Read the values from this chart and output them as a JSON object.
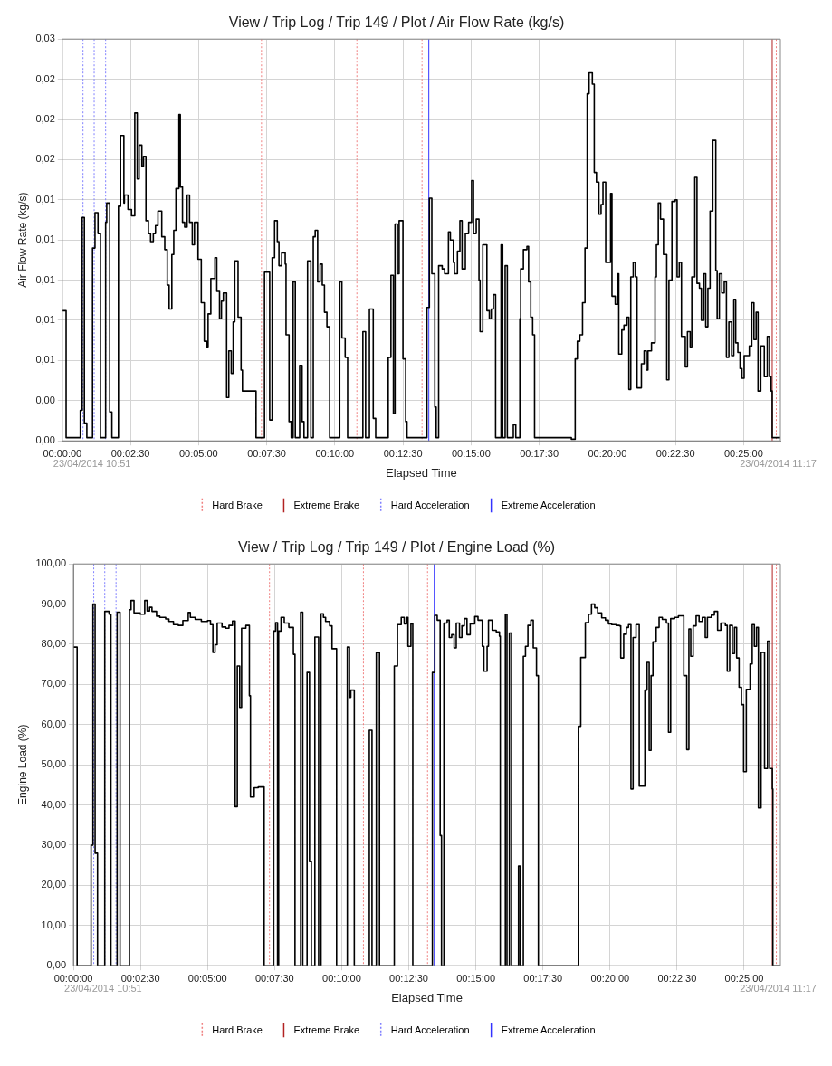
{
  "chart_data": [
    {
      "type": "step",
      "title": "View / Trip Log / Trip 149 / Plot / Air Flow Rate (kg/s)",
      "xlabel": "Elapsed Time",
      "ylabel": "Air Flow Rate (kg/s)",
      "annotations": [
        "23/04/2014 10:51",
        "23/04/2014 11:17"
      ],
      "xlim": [
        0,
        26.35
      ],
      "xticks": [
        {
          "value": 0,
          "label": "00:00:00"
        },
        {
          "value": 2.5,
          "label": "00:02:30"
        },
        {
          "value": 5,
          "label": "00:05:00"
        },
        {
          "value": 7.5,
          "label": "00:07:30"
        },
        {
          "value": 10,
          "label": "00:10:00"
        },
        {
          "value": 12.5,
          "label": "00:12:30"
        },
        {
          "value": 15,
          "label": "00:15:00"
        },
        {
          "value": 17.5,
          "label": "00:17:30"
        },
        {
          "value": 20,
          "label": "00:20:00"
        },
        {
          "value": 22.5,
          "label": "00:22:30"
        },
        {
          "value": 25,
          "label": "00:25:00"
        }
      ],
      "ylim": [
        0,
        0.025
      ],
      "yticks": [
        {
          "value": 0,
          "label": "0,00"
        },
        {
          "value": 0.0025,
          "label": "0,00"
        },
        {
          "value": 0.005,
          "label": "0,01"
        },
        {
          "value": 0.0075,
          "label": "0,01"
        },
        {
          "value": 0.01,
          "label": "0,01"
        },
        {
          "value": 0.0125,
          "label": "0,01"
        },
        {
          "value": 0.015,
          "label": "0,01"
        },
        {
          "value": 0.0175,
          "label": "0,02"
        },
        {
          "value": 0.02,
          "label": "0,02"
        },
        {
          "value": 0.0225,
          "label": "0,02"
        },
        {
          "value": 0.025,
          "label": "0,03"
        }
      ],
      "grid": true,
      "legend": "bottom",
      "marker": "none",
      "ref_lines": [
        {
          "axis": "x",
          "value": 7.31,
          "label": "Hard Brake",
          "color": "#f08080",
          "line_style": "dotted"
        },
        {
          "axis": "x",
          "value": 10.81,
          "color": "#f08080",
          "line_style": "dotted"
        },
        {
          "axis": "x",
          "value": 13.2,
          "color": "#f08080",
          "line_style": "dotted"
        },
        {
          "axis": "x",
          "value": 26.2,
          "color": "#f08080",
          "line_style": "dotted"
        },
        {
          "axis": "x",
          "value": 26.05,
          "label": "Extreme Brake",
          "color": "#b22222",
          "line_style": "solid"
        },
        {
          "axis": "x",
          "value": 0.76,
          "label": "Hard Acceleration",
          "color": "#8080ff",
          "line_style": "dotted"
        },
        {
          "axis": "x",
          "value": 1.17,
          "color": "#8080ff",
          "line_style": "dotted"
        },
        {
          "axis": "x",
          "value": 1.59,
          "color": "#8080ff",
          "line_style": "dotted"
        },
        {
          "axis": "x",
          "value": 13.45,
          "label": "Extreme Acceleration",
          "color": "#3333ff",
          "line_style": "solid"
        }
      ],
      "series": [
        {
          "color": "#000000",
          "line_style": "solid",
          "x": [
            0,
            0.14,
            0.66,
            0.73,
            0.81,
            0.9,
            1.11,
            1.2,
            1.31,
            1.4,
            1.59,
            1.63,
            1.74,
            1.82,
            2.06,
            2.14,
            2.26,
            2.28,
            2.41,
            2.54,
            2.66,
            2.75,
            2.82,
            2.92,
            2.98,
            3.07,
            3.16,
            3.24,
            3.34,
            3.42,
            3.51,
            3.65,
            3.76,
            3.85,
            3.92,
            4.02,
            4.09,
            4.17,
            4.28,
            4.33,
            4.41,
            4.49,
            4.58,
            4.67,
            4.77,
            4.85,
            4.98,
            5.1,
            5.21,
            5.3,
            5.35,
            5.45,
            5.6,
            5.67,
            5.77,
            5.84,
            5.91,
            6.03,
            6.11,
            6.2,
            6.27,
            6.33,
            6.45,
            6.56,
            6.61,
            7.11,
            7.42,
            7.61,
            7.7,
            7.79,
            7.89,
            7.95,
            8.05,
            8.18,
            8.21,
            8.32,
            8.4,
            8.47,
            8.55,
            8.71,
            8.8,
            8.87,
            9.0,
            9.12,
            9.21,
            9.28,
            9.37,
            9.46,
            9.54,
            9.62,
            9.71,
            9.81,
            10.18,
            10.26,
            10.38,
            10.47,
            11.03,
            11.13,
            11.27,
            11.41,
            11.5,
            11.96,
            12.06,
            12.15,
            12.21,
            12.3,
            12.36,
            12.5,
            12.6,
            12.65,
            13.38,
            13.47,
            13.56,
            13.67,
            13.72,
            13.81,
            13.94,
            14.03,
            14.17,
            14.24,
            14.35,
            14.39,
            14.5,
            14.59,
            14.67,
            14.79,
            14.91,
            15.02,
            15.09,
            15.19,
            15.29,
            15.33,
            15.43,
            15.58,
            15.67,
            15.74,
            15.82,
            15.9,
            16.1,
            16.16,
            16.25,
            16.33,
            16.55,
            16.64,
            16.79,
            16.82,
            16.92,
            17.05,
            17.11,
            17.19,
            17.26,
            17.33,
            18.68,
            18.82,
            18.9,
            18.99,
            19.09,
            19.18,
            19.26,
            19.33,
            19.45,
            19.52,
            19.6,
            19.69,
            19.77,
            19.84,
            19.94,
            20.12,
            20.17,
            20.29,
            20.38,
            20.42,
            20.53,
            20.61,
            20.72,
            20.79,
            20.86,
            20.95,
            21.03,
            21.09,
            21.25,
            21.35,
            21.43,
            21.49,
            21.62,
            21.75,
            21.8,
            21.87,
            21.95,
            22.06,
            22.18,
            22.26,
            22.37,
            22.49,
            22.56,
            22.64,
            22.72,
            22.86,
            22.94,
            23.04,
            23.1,
            23.21,
            23.29,
            23.38,
            23.45,
            23.54,
            23.61,
            23.69,
            23.77,
            23.87,
            23.98,
            24.03,
            24.11,
            24.2,
            24.29,
            24.37,
            24.46,
            24.56,
            24.64,
            24.71,
            24.79,
            24.87,
            24.94,
            25.02,
            25.21,
            25.3,
            25.38,
            25.46,
            25.53,
            25.63,
            25.76,
            25.87,
            25.95,
            26.01,
            26.05,
            26.35
          ],
          "values": [
            0.0081,
            0.0002,
            0.0019,
            0.0139,
            0.0011,
            0.0002,
            0.012,
            0.0142,
            0.0129,
            0.0002,
            0.0136,
            0.0148,
            0.0018,
            0.0002,
            0.0146,
            0.019,
            0.0148,
            0.0153,
            0.0144,
            0.014,
            0.0204,
            0.0163,
            0.0184,
            0.0171,
            0.0177,
            0.0137,
            0.0129,
            0.0124,
            0.0129,
            0.0134,
            0.0143,
            0.0127,
            0.0119,
            0.0097,
            0.0082,
            0.0116,
            0.0131,
            0.0157,
            0.0203,
            0.0158,
            0.0136,
            0.0133,
            0.0153,
            0.0136,
            0.0122,
            0.0136,
            0.0113,
            0.0086,
            0.0062,
            0.0058,
            0.0079,
            0.0101,
            0.0114,
            0.0093,
            0.0076,
            0.0087,
            0.0092,
            0.0027,
            0.0056,
            0.0042,
            0.0074,
            0.0112,
            0.0077,
            0.0044,
            0.0031,
            0.0002,
            0.0105,
            0.0013,
            0.0114,
            0.0137,
            0.0124,
            0.0109,
            0.0117,
            0.011,
            0.0066,
            0.0012,
            0.0002,
            0.0099,
            0.0002,
            0.0047,
            0.0012,
            0.0002,
            0.0112,
            0.0002,
            0.0127,
            0.0131,
            0.0099,
            0.011,
            0.0097,
            0.008,
            0.0071,
            0.0002,
            0.0099,
            0.0064,
            0.0052,
            0.0002,
            0.0068,
            0.0002,
            0.0082,
            0.0014,
            0.0002,
            0.0052,
            0.0103,
            0.0017,
            0.0135,
            0.0104,
            0.0137,
            0.0051,
            0.0012,
            0.0002,
            0.0083,
            0.0151,
            0.0104,
            0.0021,
            0.0002,
            0.0109,
            0.0107,
            0.0104,
            0.013,
            0.0125,
            0.0111,
            0.0104,
            0.0118,
            0.0137,
            0.0107,
            0.0129,
            0.0136,
            0.0162,
            0.0129,
            0.0138,
            0.01,
            0.0068,
            0.0122,
            0.0081,
            0.0076,
            0.0082,
            0.0091,
            0.0002,
            0.0122,
            0.0002,
            0.0109,
            0.0002,
            0.001,
            0.0002,
            0.0076,
            0.0107,
            0.0119,
            0.0121,
            0.0099,
            0.0077,
            0.0066,
            0.0002,
            0.0001,
            0.0051,
            0.0062,
            0.0066,
            0.0086,
            0.012,
            0.0216,
            0.0229,
            0.0222,
            0.0167,
            0.0161,
            0.0141,
            0.0147,
            0.0161,
            0.0111,
            0.0154,
            0.009,
            0.0085,
            0.0104,
            0.0054,
            0.0069,
            0.0072,
            0.0077,
            0.0032,
            0.0102,
            0.0111,
            0.0102,
            0.0033,
            0.0048,
            0.0056,
            0.0044,
            0.0056,
            0.0061,
            0.0102,
            0.0122,
            0.0148,
            0.0138,
            0.0116,
            0.0038,
            0.01,
            0.0149,
            0.015,
            0.0102,
            0.0111,
            0.0065,
            0.0046,
            0.0068,
            0.0058,
            0.0102,
            0.0164,
            0.0098,
            0.0095,
            0.0075,
            0.0104,
            0.0071,
            0.0095,
            0.0143,
            0.0187,
            0.0106,
            0.0076,
            0.0104,
            0.0092,
            0.0099,
            0.0052,
            0.0074,
            0.0053,
            0.0088,
            0.0061,
            0.0055,
            0.0045,
            0.0039,
            0.0053,
            0.0059,
            0.0086,
            0.0063,
            0.008,
            0.0031,
            0.0059,
            0.004,
            0.0065,
            0.004,
            0.0031,
            0.0002,
            0.0002
          ]
        }
      ]
    },
    {
      "type": "step",
      "title": "View / Trip Log / Trip 149 / Plot / Engine Load (%)",
      "xlabel": "Elapsed Time",
      "ylabel": "Engine Load (%)",
      "annotations": [
        "23/04/2014 10:51",
        "23/04/2014 11:17"
      ],
      "xlim": [
        0,
        26.35
      ],
      "xticks": [
        {
          "value": 0,
          "label": "00:00:00"
        },
        {
          "value": 2.5,
          "label": "00:02:30"
        },
        {
          "value": 5,
          "label": "00:05:00"
        },
        {
          "value": 7.5,
          "label": "00:07:30"
        },
        {
          "value": 10,
          "label": "00:10:00"
        },
        {
          "value": 12.5,
          "label": "00:12:30"
        },
        {
          "value": 15,
          "label": "00:15:00"
        },
        {
          "value": 17.5,
          "label": "00:17:30"
        },
        {
          "value": 20,
          "label": "00:20:00"
        },
        {
          "value": 22.5,
          "label": "00:22:30"
        },
        {
          "value": 25,
          "label": "00:25:00"
        }
      ],
      "ylim": [
        0,
        100
      ],
      "yticks": [
        {
          "value": 0,
          "label": "0,00"
        },
        {
          "value": 10,
          "label": "10,00"
        },
        {
          "value": 20,
          "label": "20,00"
        },
        {
          "value": 30,
          "label": "30,00"
        },
        {
          "value": 40,
          "label": "40,00"
        },
        {
          "value": 50,
          "label": "50,00"
        },
        {
          "value": 60,
          "label": "60,00"
        },
        {
          "value": 70,
          "label": "70,00"
        },
        {
          "value": 80,
          "label": "80,00"
        },
        {
          "value": 90,
          "label": "90,00"
        },
        {
          "value": 100,
          "label": "100,00"
        }
      ],
      "grid": true,
      "legend": "bottom",
      "marker": "none",
      "ref_lines": [
        {
          "axis": "x",
          "value": 7.31,
          "label": "Hard Brake",
          "color": "#f08080",
          "line_style": "dotted"
        },
        {
          "axis": "x",
          "value": 10.81,
          "color": "#f08080",
          "line_style": "dotted"
        },
        {
          "axis": "x",
          "value": 13.2,
          "color": "#f08080",
          "line_style": "dotted"
        },
        {
          "axis": "x",
          "value": 26.2,
          "color": "#f08080",
          "line_style": "dotted"
        },
        {
          "axis": "x",
          "value": 26.05,
          "label": "Extreme Brake",
          "color": "#b22222",
          "line_style": "solid"
        },
        {
          "axis": "x",
          "value": 0.76,
          "label": "Hard Acceleration",
          "color": "#8080ff",
          "line_style": "dotted"
        },
        {
          "axis": "x",
          "value": 1.17,
          "color": "#8080ff",
          "line_style": "dotted"
        },
        {
          "axis": "x",
          "value": 1.59,
          "color": "#8080ff",
          "line_style": "dotted"
        },
        {
          "axis": "x",
          "value": 13.45,
          "label": "Extreme Acceleration",
          "color": "#3333ff",
          "line_style": "solid"
        }
      ],
      "series": [
        {
          "color": "#000000",
          "line_style": "solid",
          "x": [
            0,
            0.14,
            0.66,
            0.73,
            0.81,
            0.9,
            1.17,
            1.33,
            1.4,
            1.63,
            1.74,
            2.09,
            2.15,
            2.26,
            2.49,
            2.66,
            2.75,
            2.84,
            2.93,
            3.1,
            3.22,
            3.44,
            3.56,
            3.73,
            3.91,
            4.08,
            4.28,
            4.36,
            4.54,
            4.77,
            5.0,
            5.11,
            5.2,
            5.28,
            5.36,
            5.54,
            5.68,
            5.8,
            5.93,
            6.03,
            6.11,
            6.2,
            6.27,
            6.43,
            6.56,
            6.6,
            6.74,
            6.89,
            7.11,
            7.46,
            7.54,
            7.61,
            7.65,
            7.74,
            7.86,
            8.03,
            8.2,
            8.26,
            8.47,
            8.55,
            8.71,
            8.8,
            8.87,
            9.0,
            9.14,
            9.23,
            9.32,
            9.4,
            9.55,
            9.64,
            9.81,
            10.21,
            10.29,
            10.34,
            10.47,
            11.03,
            11.13,
            11.29,
            11.41,
            11.96,
            12.08,
            12.22,
            12.33,
            12.42,
            12.47,
            12.58,
            12.65,
            13.38,
            13.47,
            13.56,
            13.67,
            13.72,
            13.81,
            13.93,
            14.01,
            14.1,
            14.19,
            14.27,
            14.39,
            14.48,
            14.57,
            14.67,
            14.79,
            14.96,
            15.08,
            15.24,
            15.3,
            15.42,
            15.47,
            15.61,
            15.76,
            15.88,
            15.91,
            16.1,
            16.16,
            16.25,
            16.33,
            16.59,
            16.65,
            16.77,
            16.85,
            16.94,
            17.05,
            17.14,
            17.26,
            17.33,
            18.82,
            18.91,
            19.08,
            19.2,
            19.31,
            19.43,
            19.54,
            19.69,
            19.83,
            19.94,
            20.06,
            20.23,
            20.35,
            20.4,
            20.51,
            20.61,
            20.69,
            20.78,
            20.86,
            20.97,
            21.09,
            21.23,
            21.3,
            21.38,
            21.46,
            21.53,
            21.6,
            21.72,
            21.83,
            21.95,
            22.1,
            22.18,
            22.26,
            22.41,
            22.55,
            22.75,
            22.86,
            22.94,
            23.01,
            23.1,
            23.21,
            23.32,
            23.44,
            23.55,
            23.63,
            23.78,
            23.89,
            24.01,
            24.13,
            24.3,
            24.37,
            24.46,
            24.56,
            24.64,
            24.72,
            24.81,
            24.9,
            24.98,
            25.08,
            25.22,
            25.3,
            25.38,
            25.46,
            25.53,
            25.63,
            25.76,
            25.87,
            25.95,
            26.05,
            26.07,
            26.35
          ],
          "values": [
            79.3,
            0,
            30,
            90,
            28,
            0,
            88.2,
            87.5,
            0,
            88,
            0,
            88.6,
            90.9,
            87.8,
            87.5,
            90.9,
            88.3,
            89.2,
            88.2,
            87,
            86.7,
            86.3,
            85.7,
            84.9,
            84.7,
            85.9,
            87.9,
            86.7,
            86.2,
            85.7,
            85.9,
            84.9,
            78,
            79.9,
            85.3,
            84.3,
            84,
            84.7,
            85.8,
            39.6,
            74.6,
            64.3,
            84,
            84.7,
            67.2,
            42,
            44.3,
            44.5,
            0,
            83.3,
            85.4,
            0,
            83.3,
            86.7,
            85.3,
            84.2,
            77.5,
            0,
            88,
            0,
            73,
            25.9,
            0,
            81.8,
            0,
            87.6,
            86.7,
            85.7,
            84.6,
            78.9,
            0,
            79.3,
            66.8,
            68.6,
            0,
            58.6,
            0,
            77.9,
            0,
            74.6,
            84.9,
            86.7,
            85.1,
            86.7,
            79.5,
            85.1,
            0,
            73,
            87.2,
            86,
            32.4,
            0,
            85.3,
            86,
            81.7,
            82.4,
            79.1,
            85.3,
            81.7,
            84.6,
            86.4,
            82.4,
            85.1,
            86.9,
            86,
            79.5,
            73.3,
            79.5,
            86,
            83.5,
            83.1,
            82,
            0,
            87.5,
            0,
            82.8,
            0,
            24.8,
            0,
            77,
            79.5,
            84.7,
            86,
            79.1,
            72.2,
            0,
            59.6,
            76.7,
            85.4,
            87.5,
            90,
            89.1,
            87.8,
            86.6,
            86,
            85.1,
            84.9,
            84.7,
            84.6,
            76.6,
            82.5,
            84.2,
            84.9,
            44,
            81.7,
            84.9,
            44.7,
            44.7,
            68.6,
            75.5,
            53.6,
            72.2,
            80.6,
            84.2,
            86.7,
            86.2,
            85.3,
            58.1,
            86.4,
            86.7,
            87.1,
            72.2,
            53.8,
            83.8,
            77,
            84.6,
            87.1,
            85.7,
            86.7,
            81.7,
            86.7,
            87.3,
            88.2,
            83.5,
            85.3,
            84.7,
            73.3,
            84.7,
            77.7,
            84.2,
            76.6,
            69.3,
            65,
            48.3,
            68.8,
            75.1,
            84.9,
            79.5,
            84.2,
            39.3,
            78,
            49.1,
            80.8,
            49.1,
            44,
            0,
            0
          ]
        }
      ]
    }
  ]
}
